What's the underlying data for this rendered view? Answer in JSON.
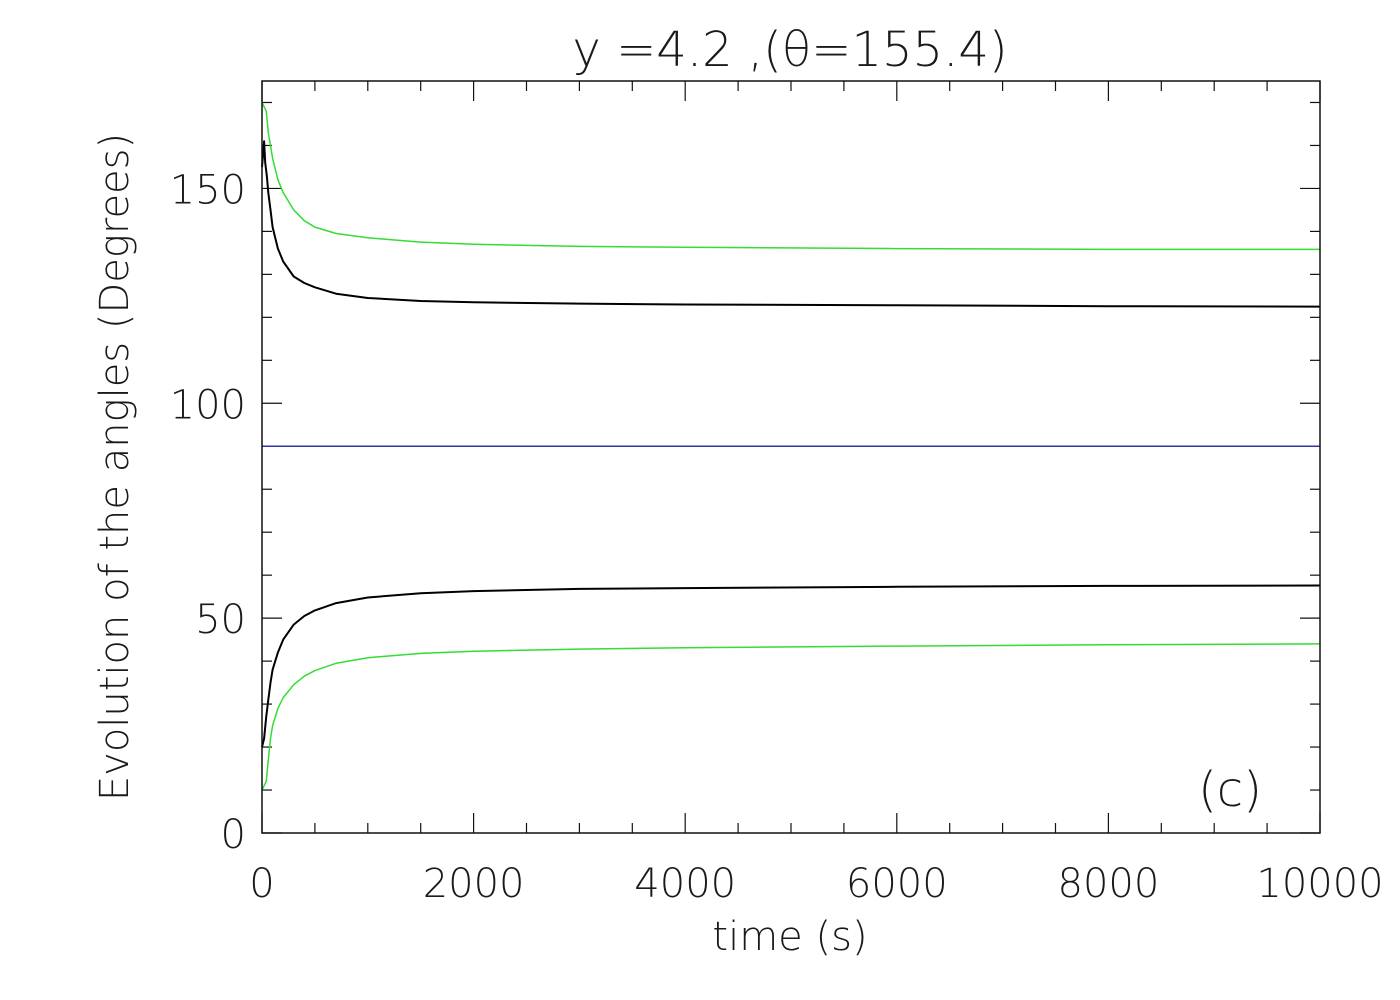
{
  "chart_data": {
    "type": "line",
    "title": "y =4.2 ,(θ=155.4)",
    "xlabel": "time (s)",
    "ylabel": "Evolution of the angles (Degrees)",
    "panel_label": "(c)",
    "xlim": [
      0,
      10000
    ],
    "ylim": [
      0,
      175
    ],
    "xticks": [
      0,
      2000,
      4000,
      6000,
      8000,
      10000
    ],
    "xtick_labels": [
      "0",
      "2000",
      "4000",
      "6000",
      "8000",
      "10000"
    ],
    "yticks": [
      0,
      50,
      100,
      150
    ],
    "ytick_labels": [
      "0",
      "50",
      "100",
      "150"
    ],
    "x_minor_step": 500,
    "y_minor_step": 10,
    "grid": false,
    "series": [
      {
        "color": "#33dd33",
        "x": [
          0,
          20,
          40,
          60,
          80,
          100,
          150,
          200,
          300,
          400,
          500,
          700,
          1000,
          1500,
          2000,
          3000,
          4000,
          6000,
          8000,
          10000
        ],
        "y": [
          170,
          169,
          168,
          163,
          160,
          157,
          152,
          149,
          145,
          142.5,
          141,
          139.5,
          138.5,
          137.5,
          137,
          136.5,
          136.3,
          136,
          135.8,
          135.8
        ]
      },
      {
        "color": "#000000",
        "x": [
          0,
          10,
          20,
          30,
          45,
          60,
          80,
          100,
          150,
          200,
          300,
          400,
          500,
          700,
          1000,
          1500,
          2000,
          3000,
          4000,
          6000,
          8000,
          10000
        ],
        "y": [
          155,
          158,
          161,
          156,
          153,
          149,
          145,
          141,
          136,
          133,
          129.5,
          128,
          127,
          125.5,
          124.5,
          123.8,
          123.5,
          123.2,
          123,
          122.8,
          122.6,
          122.5
        ]
      },
      {
        "color": "#3333aa",
        "x": [
          0,
          10000
        ],
        "y": [
          90,
          90
        ]
      },
      {
        "color": "#000000",
        "x": [
          0,
          20,
          40,
          60,
          80,
          100,
          150,
          200,
          300,
          400,
          500,
          700,
          1000,
          1500,
          2000,
          3000,
          4000,
          6000,
          8000,
          10000
        ],
        "y": [
          20,
          22,
          27,
          31,
          35,
          38,
          42,
          45,
          48.5,
          50.5,
          51.8,
          53.5,
          54.8,
          55.8,
          56.3,
          56.8,
          57,
          57.3,
          57.5,
          57.6
        ]
      },
      {
        "color": "#33dd33",
        "x": [
          0,
          20,
          40,
          60,
          80,
          100,
          150,
          200,
          300,
          400,
          500,
          700,
          1000,
          1500,
          2000,
          3000,
          4000,
          6000,
          8000,
          10000
        ],
        "y": [
          10,
          11,
          12,
          17,
          22,
          25,
          29,
          31.5,
          34.5,
          36.5,
          37.8,
          39.5,
          40.8,
          41.8,
          42.3,
          42.8,
          43.1,
          43.5,
          43.8,
          44
        ]
      }
    ]
  }
}
